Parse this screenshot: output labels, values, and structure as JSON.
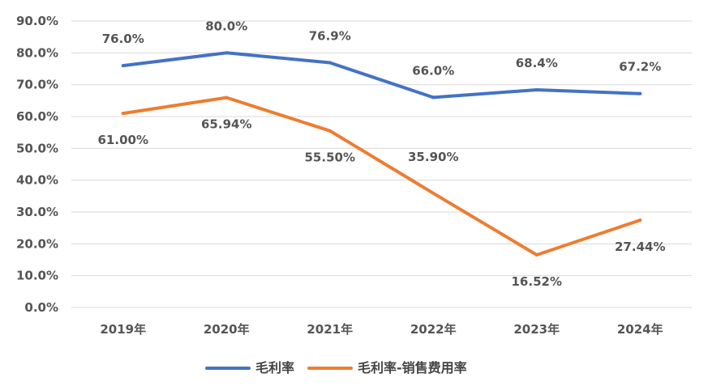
{
  "chart_data": {
    "type": "line",
    "categories": [
      "2019年",
      "2020年",
      "2021年",
      "2022年",
      "2023年",
      "2024年"
    ],
    "ylim": [
      0,
      90
    ],
    "yticks": [
      "0.0%",
      "10.0%",
      "20.0%",
      "30.0%",
      "40.0%",
      "50.0%",
      "60.0%",
      "70.0%",
      "80.0%",
      "90.0%"
    ],
    "grid": true,
    "legend_position": "bottom",
    "series": [
      {
        "name": "毛利率",
        "color": "#4472c4",
        "values": [
          76.0,
          80.0,
          76.9,
          66.0,
          68.4,
          67.2
        ],
        "labels": [
          "76.0%",
          "80.0%",
          "76.9%",
          "66.0%",
          "68.4%",
          "67.2%"
        ]
      },
      {
        "name": "毛利率-销售费用率",
        "color": "#ed7d31",
        "values": [
          61.0,
          65.94,
          55.5,
          35.9,
          16.52,
          27.44
        ],
        "labels": [
          "61.00%",
          "65.94%",
          "55.50%",
          "35.90%",
          "16.52%",
          "27.44%"
        ]
      }
    ]
  }
}
